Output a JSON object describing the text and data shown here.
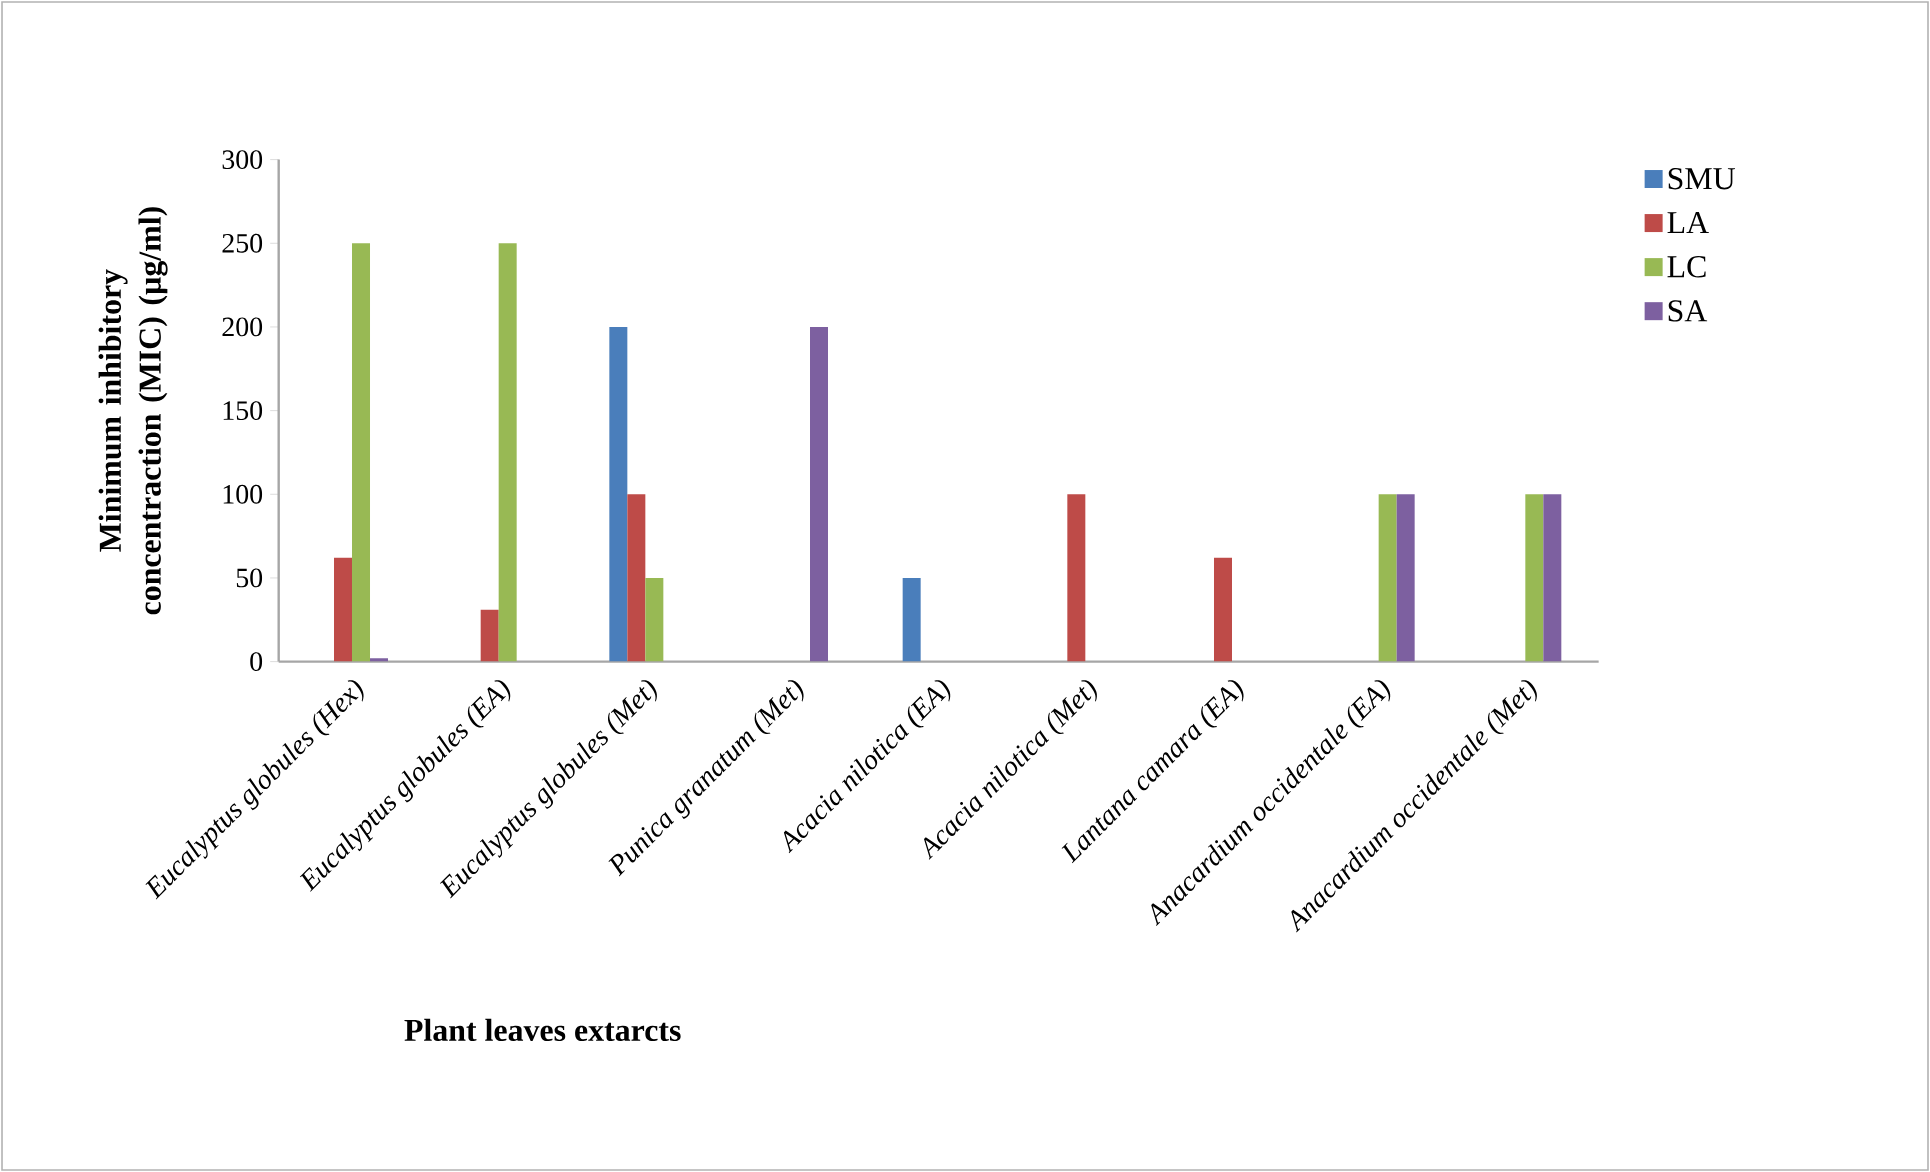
{
  "chart_data": {
    "type": "bar",
    "xlabel": "Plant leaves extarcts",
    "ylabel": "Minimum inhibitory concentraction (MIC) (µg/ml)",
    "categories": [
      "Eucalyptus globules (Hex)",
      "Eucalyptus globules (EA)",
      "Eucalyptus globules (Met)",
      "Punica granatum (Met)",
      "Acacia nilotica  (EA)",
      "Acacia nilotica (Met)",
      "Lantana camara (EA)",
      "Anacardium occidentale (EA)",
      "Anacardium occidentale (Met)"
    ],
    "series": [
      {
        "name": "SMU",
        "color": "#4a7ebb",
        "values": [
          null,
          null,
          200,
          null,
          50,
          null,
          null,
          null,
          null
        ]
      },
      {
        "name": "LA",
        "color": "#be4b48",
        "values": [
          62,
          31,
          100,
          null,
          null,
          100,
          62,
          null,
          null
        ]
      },
      {
        "name": "LC",
        "color": "#98b954",
        "values": [
          250,
          250,
          50,
          null,
          null,
          null,
          null,
          100,
          100
        ]
      },
      {
        "name": "SA",
        "color": "#7d60a0",
        "values": [
          2,
          null,
          null,
          200,
          null,
          null,
          null,
          100,
          100
        ]
      }
    ],
    "ylim": [
      0,
      300
    ],
    "yticks": [
      0,
      50,
      100,
      150,
      200,
      250,
      300
    ],
    "grid": false,
    "legend": "right"
  }
}
